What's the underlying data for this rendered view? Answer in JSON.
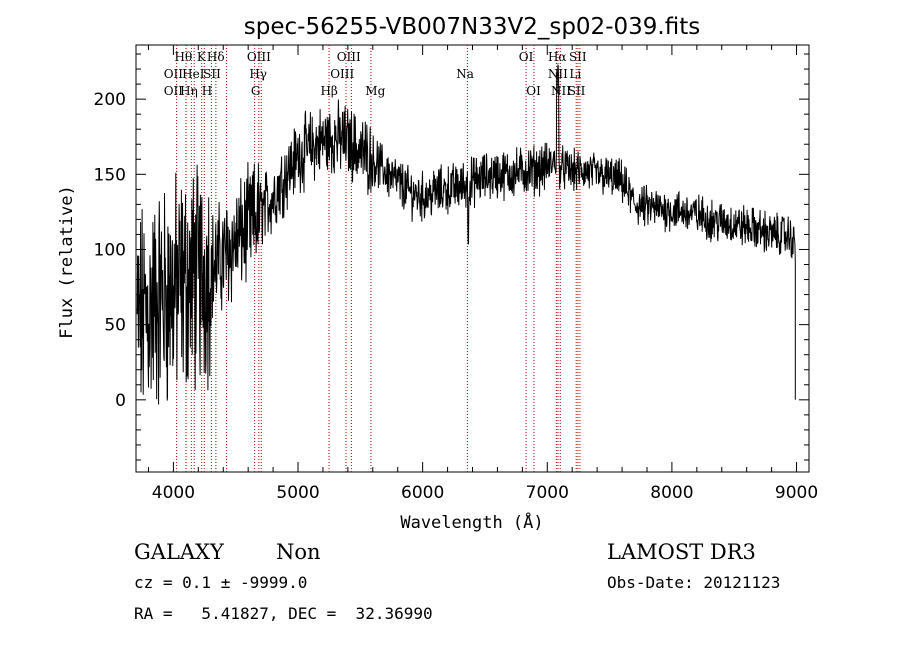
{
  "chart_data": {
    "type": "line",
    "title": "spec-56255-VB007N33V2_sp02-039.fits",
    "xlabel": "Wavelength (Å)",
    "ylabel": "Flux (relative)",
    "xlim": [
      3700,
      9100
    ],
    "ylim": [
      -48,
      236
    ],
    "x_ticks": [
      4000,
      5000,
      6000,
      7000,
      8000,
      9000
    ],
    "y_ticks": [
      0,
      50,
      100,
      150,
      200
    ],
    "grid": false,
    "legend": "none",
    "line_color": "#000000",
    "marker_color": "#b40000",
    "spectrum_anchors": {
      "x": [
        3710,
        3800,
        3900,
        4000,
        4100,
        4200,
        4300,
        4400,
        4500,
        4600,
        4700,
        4800,
        4900,
        5000,
        5100,
        5200,
        5300,
        5400,
        5500,
        5600,
        5700,
        5800,
        5900,
        6000,
        6100,
        6200,
        6300,
        6400,
        6500,
        6600,
        6700,
        6800,
        6900,
        7000,
        7080,
        7100,
        7200,
        7300,
        7400,
        7500,
        7600,
        7700,
        7800,
        7900,
        8000,
        8100,
        8200,
        8300,
        8400,
        8500,
        8600,
        8700,
        8800,
        8900,
        8960,
        8990
      ],
      "y": [
        50,
        60,
        68,
        72,
        78,
        82,
        88,
        95,
        105,
        115,
        125,
        135,
        150,
        162,
        168,
        172,
        174,
        172,
        165,
        160,
        152,
        145,
        138,
        135,
        138,
        140,
        142,
        145,
        148,
        150,
        150,
        152,
        153,
        155,
        160,
        155,
        152,
        152,
        150,
        148,
        145,
        130,
        128,
        127,
        126,
        125,
        123,
        120,
        118,
        117,
        115,
        113,
        110,
        110,
        108,
        100
      ]
    },
    "spectral_lines": [
      {
        "x": 3727,
        "label": ""
      },
      {
        "x": 4026,
        "label": "OII"
      },
      {
        "x": 4102,
        "label": "Hθ"
      },
      {
        "x": 4101,
        "label": "OII"
      },
      {
        "x": 4144,
        "label": "HeI"
      },
      {
        "x": 4167,
        "label": "Hη"
      },
      {
        "x": 4227,
        "label": "K"
      },
      {
        "x": 4248,
        "label": "HeI"
      },
      {
        "x": 4305,
        "label": "H"
      },
      {
        "x": 4341,
        "label": "Hδ"
      },
      {
        "x": 4427,
        "label": "SII"
      },
      {
        "x": 4652,
        "label": "OIII"
      },
      {
        "x": 4686,
        "label": "Hγ"
      },
      {
        "x": 4705,
        "label": "G"
      },
      {
        "x": 5249,
        "label": "Hβ"
      },
      {
        "x": 5385,
        "label": "OIII"
      },
      {
        "x": 5428,
        "label": "OIII"
      },
      {
        "x": 5585,
        "label": "Mg"
      },
      {
        "x": 6359,
        "label": "Na"
      },
      {
        "x": 6830,
        "label": "OI"
      },
      {
        "x": 6893,
        "label": "OI"
      },
      {
        "x": 7073,
        "label": "Hα"
      },
      {
        "x": 7086,
        "label": "NII"
      },
      {
        "x": 7104,
        "label": "NII"
      },
      {
        "x": 7232,
        "label": "SII"
      },
      {
        "x": 7246,
        "label": "Li"
      },
      {
        "x": 7262,
        "label": "SII"
      }
    ],
    "line_label_rows": [
      {
        "row": 0,
        "items": [
          {
            "x": 4080,
            "text": "Hθ"
          },
          {
            "x": 4224,
            "text": "K"
          },
          {
            "x": 4340,
            "text": "Hδ"
          },
          {
            "x": 4686,
            "text": "OIII"
          },
          {
            "x": 5407,
            "text": "OIII"
          },
          {
            "x": 6830,
            "text": "OI"
          },
          {
            "x": 7080,
            "text": "Hα"
          },
          {
            "x": 7245,
            "text": "SII"
          }
        ]
      },
      {
        "row": 1,
        "items": [
          {
            "x": 4000,
            "text": "OII"
          },
          {
            "x": 4160,
            "text": "HeI"
          },
          {
            "x": 4310,
            "text": "SII"
          },
          {
            "x": 4680,
            "text": "Hγ"
          },
          {
            "x": 5355,
            "text": "OIII"
          },
          {
            "x": 6340,
            "text": "Na"
          },
          {
            "x": 7085,
            "text": "NII"
          },
          {
            "x": 7225,
            "text": "Li"
          }
        ]
      },
      {
        "row": 2,
        "items": [
          {
            "x": 4000,
            "text": "OII"
          },
          {
            "x": 4125,
            "text": "Hη"
          },
          {
            "x": 4270,
            "text": "H"
          },
          {
            "x": 4660,
            "text": "G"
          },
          {
            "x": 5250,
            "text": "Hβ"
          },
          {
            "x": 5620,
            "text": "Mg"
          },
          {
            "x": 6890,
            "text": "OI"
          },
          {
            "x": 7110,
            "text": "NII"
          },
          {
            "x": 7235,
            "text": "SII"
          }
        ]
      }
    ]
  },
  "info": {
    "class_label": "GALAXY",
    "subclass_label": "Non",
    "survey_label": "LAMOST DR3",
    "cz_text": "cz = 0.1 ± -9999.0",
    "obs_date_text": "Obs-Date: 20121123",
    "radec_text": "RA =   5.41827, DEC =  32.36990"
  }
}
